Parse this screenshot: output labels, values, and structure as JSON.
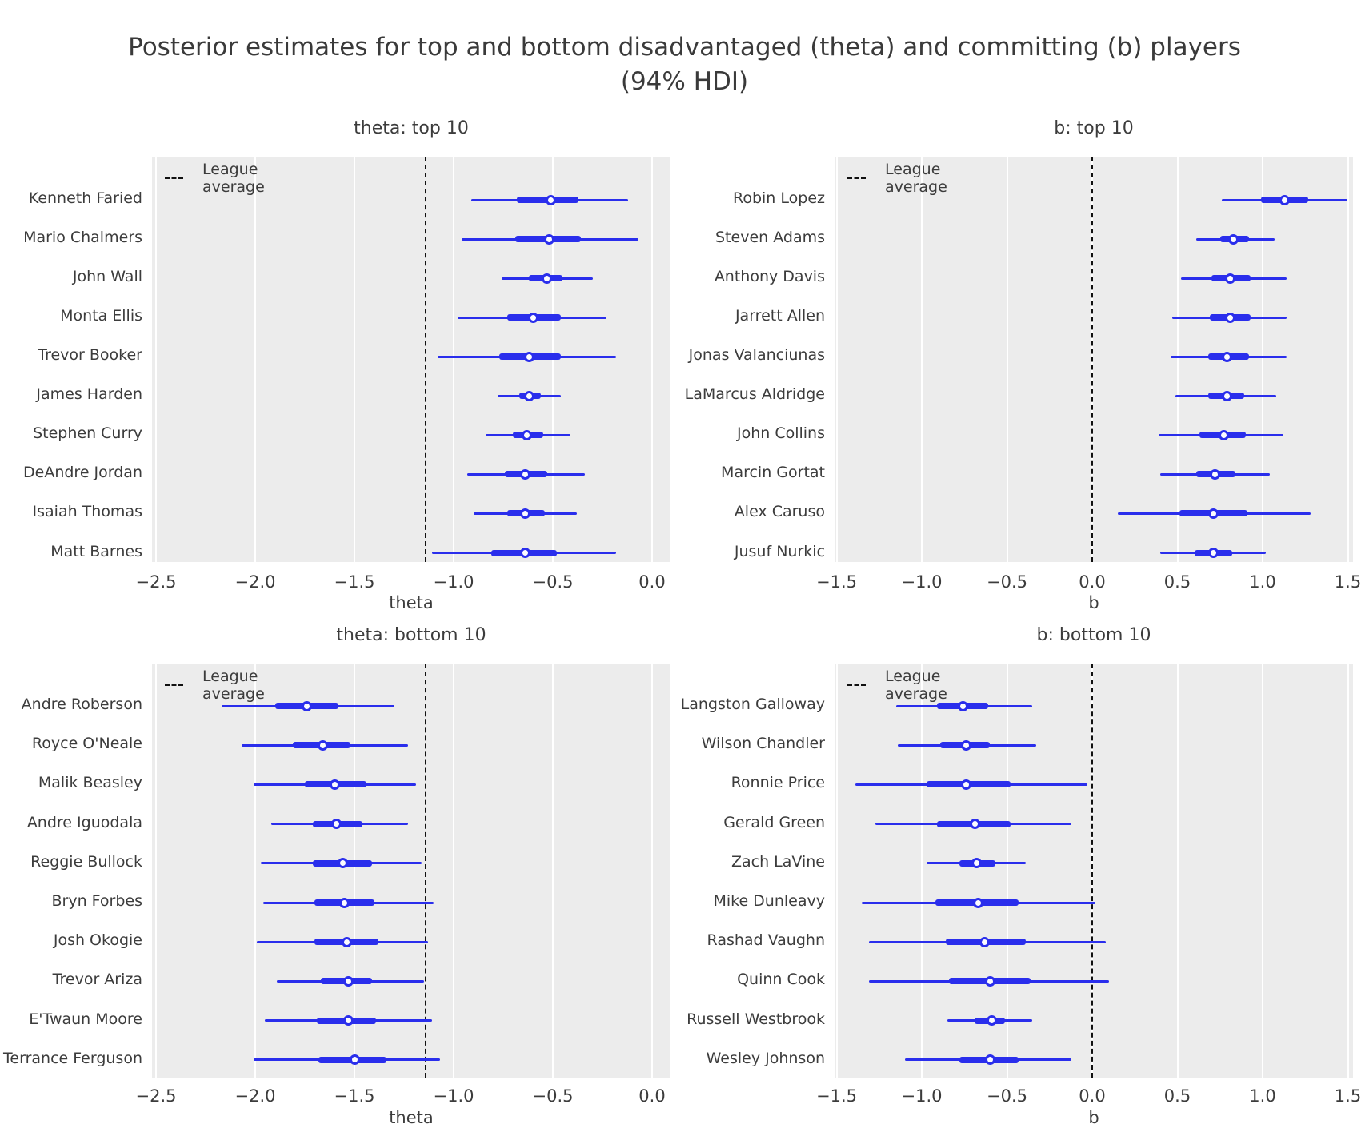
{
  "figure": {
    "suptitle_line1": "Posterior estimates for top and bottom disadvantaged (theta) and committing (b) players",
    "suptitle_line2": "(94% HDI)"
  },
  "style": {
    "line_color": "#2a2eec",
    "panel_bg": "#ececec",
    "grid_color": "#ffffff",
    "dashed_line_color": "#111111",
    "text_color": "#3c3c3c",
    "background": "#ffffff"
  },
  "legend_label": "League average",
  "chart_data": [
    {
      "type": "forest",
      "title": "theta: top 10",
      "xlabel": "theta",
      "xticks": [
        -2.5,
        -2.0,
        -1.5,
        -1.0,
        -0.5,
        0.0
      ],
      "xlim": [
        -2.52,
        0.09
      ],
      "league_average": -1.14,
      "interval_note": "thin line = 94% HDI, thick line = interquartile range, dot = point estimate",
      "players": [
        {
          "name": "Kenneth Faried",
          "hdi_low": -0.91,
          "q25": -0.68,
          "point": -0.51,
          "q75": -0.37,
          "hdi_high": -0.12
        },
        {
          "name": "Mario Chalmers",
          "hdi_low": -0.96,
          "q25": -0.69,
          "point": -0.52,
          "q75": -0.36,
          "hdi_high": -0.07
        },
        {
          "name": "John Wall",
          "hdi_low": -0.76,
          "q25": -0.62,
          "point": -0.53,
          "q75": -0.45,
          "hdi_high": -0.3
        },
        {
          "name": "Monta Ellis",
          "hdi_low": -0.98,
          "q25": -0.73,
          "point": -0.6,
          "q75": -0.46,
          "hdi_high": -0.23
        },
        {
          "name": "Trevor Booker",
          "hdi_low": -1.08,
          "q25": -0.77,
          "point": -0.62,
          "q75": -0.46,
          "hdi_high": -0.18
        },
        {
          "name": "James Harden",
          "hdi_low": -0.78,
          "q25": -0.67,
          "point": -0.62,
          "q75": -0.56,
          "hdi_high": -0.46
        },
        {
          "name": "Stephen Curry",
          "hdi_low": -0.84,
          "q25": -0.7,
          "point": -0.63,
          "q75": -0.55,
          "hdi_high": -0.41
        },
        {
          "name": "DeAndre Jordan",
          "hdi_low": -0.93,
          "q25": -0.74,
          "point": -0.64,
          "q75": -0.53,
          "hdi_high": -0.34
        },
        {
          "name": "Isaiah Thomas",
          "hdi_low": -0.9,
          "q25": -0.73,
          "point": -0.64,
          "q75": -0.54,
          "hdi_high": -0.38
        },
        {
          "name": "Matt Barnes",
          "hdi_low": -1.11,
          "q25": -0.81,
          "point": -0.64,
          "q75": -0.48,
          "hdi_high": -0.18
        }
      ]
    },
    {
      "type": "forest",
      "title": "b: top 10",
      "xlabel": "b",
      "xticks": [
        -1.5,
        -1.0,
        -0.5,
        0.0,
        0.5,
        1.0,
        1.5
      ],
      "xlim": [
        -1.51,
        1.53
      ],
      "league_average": 0.0,
      "interval_note": "thin line = 94% HDI, thick line = interquartile range, dot = point estimate",
      "players": [
        {
          "name": "Robin Lopez",
          "hdi_low": 0.76,
          "q25": 0.99,
          "point": 1.13,
          "q75": 1.27,
          "hdi_high": 1.5
        },
        {
          "name": "Steven Adams",
          "hdi_low": 0.61,
          "q25": 0.75,
          "point": 0.83,
          "q75": 0.92,
          "hdi_high": 1.07
        },
        {
          "name": "Anthony Davis",
          "hdi_low": 0.52,
          "q25": 0.7,
          "point": 0.81,
          "q75": 0.93,
          "hdi_high": 1.14
        },
        {
          "name": "Jarrett Allen",
          "hdi_low": 0.47,
          "q25": 0.69,
          "point": 0.81,
          "q75": 0.93,
          "hdi_high": 1.14
        },
        {
          "name": "Jonas Valanciunas",
          "hdi_low": 0.46,
          "q25": 0.68,
          "point": 0.79,
          "q75": 0.92,
          "hdi_high": 1.14
        },
        {
          "name": "LaMarcus Aldridge",
          "hdi_low": 0.49,
          "q25": 0.68,
          "point": 0.79,
          "q75": 0.89,
          "hdi_high": 1.08
        },
        {
          "name": "John Collins",
          "hdi_low": 0.39,
          "q25": 0.63,
          "point": 0.77,
          "q75": 0.9,
          "hdi_high": 1.12
        },
        {
          "name": "Marcin Gortat",
          "hdi_low": 0.4,
          "q25": 0.61,
          "point": 0.72,
          "q75": 0.84,
          "hdi_high": 1.04
        },
        {
          "name": "Alex Caruso",
          "hdi_low": 0.15,
          "q25": 0.51,
          "point": 0.71,
          "q75": 0.91,
          "hdi_high": 1.28
        },
        {
          "name": "Jusuf Nurkic",
          "hdi_low": 0.4,
          "q25": 0.6,
          "point": 0.71,
          "q75": 0.82,
          "hdi_high": 1.02
        }
      ]
    },
    {
      "type": "forest",
      "title": "theta: bottom 10",
      "xlabel": "theta",
      "xticks": [
        -2.5,
        -2.0,
        -1.5,
        -1.0,
        -0.5,
        0.0
      ],
      "xlim": [
        -2.52,
        0.09
      ],
      "league_average": -1.14,
      "interval_note": "thin line = 94% HDI, thick line = interquartile range, dot = point estimate",
      "players": [
        {
          "name": "Andre Roberson",
          "hdi_low": -2.17,
          "q25": -1.9,
          "point": -1.74,
          "q75": -1.58,
          "hdi_high": -1.3
        },
        {
          "name": "Royce O'Neale",
          "hdi_low": -2.07,
          "q25": -1.81,
          "point": -1.66,
          "q75": -1.52,
          "hdi_high": -1.23
        },
        {
          "name": "Malik Beasley",
          "hdi_low": -2.01,
          "q25": -1.75,
          "point": -1.6,
          "q75": -1.44,
          "hdi_high": -1.19
        },
        {
          "name": "Andre Iguodala",
          "hdi_low": -1.92,
          "q25": -1.71,
          "point": -1.59,
          "q75": -1.46,
          "hdi_high": -1.23
        },
        {
          "name": "Reggie Bullock",
          "hdi_low": -1.97,
          "q25": -1.71,
          "point": -1.56,
          "q75": -1.41,
          "hdi_high": -1.16
        },
        {
          "name": "Bryn Forbes",
          "hdi_low": -1.96,
          "q25": -1.7,
          "point": -1.55,
          "q75": -1.4,
          "hdi_high": -1.1
        },
        {
          "name": "Josh Okogie",
          "hdi_low": -1.99,
          "q25": -1.7,
          "point": -1.54,
          "q75": -1.38,
          "hdi_high": -1.13
        },
        {
          "name": "Trevor Ariza",
          "hdi_low": -1.89,
          "q25": -1.67,
          "point": -1.53,
          "q75": -1.41,
          "hdi_high": -1.15
        },
        {
          "name": "E'Twaun Moore",
          "hdi_low": -1.95,
          "q25": -1.69,
          "point": -1.53,
          "q75": -1.39,
          "hdi_high": -1.11
        },
        {
          "name": "Terrance Ferguson",
          "hdi_low": -2.01,
          "q25": -1.68,
          "point": -1.5,
          "q75": -1.34,
          "hdi_high": -1.07
        }
      ]
    },
    {
      "type": "forest",
      "title": "b: bottom 10",
      "xlabel": "b",
      "xticks": [
        -1.5,
        -1.0,
        -0.5,
        0.0,
        0.5,
        1.0,
        1.5
      ],
      "xlim": [
        -1.51,
        1.53
      ],
      "league_average": 0.0,
      "interval_note": "thin line = 94% HDI, thick line = interquartile range, dot = point estimate",
      "players": [
        {
          "name": "Langston Galloway",
          "hdi_low": -1.15,
          "q25": -0.91,
          "point": -0.76,
          "q75": -0.61,
          "hdi_high": -0.35
        },
        {
          "name": "Wilson Chandler",
          "hdi_low": -1.14,
          "q25": -0.89,
          "point": -0.74,
          "q75": -0.6,
          "hdi_high": -0.33
        },
        {
          "name": "Ronnie Price",
          "hdi_low": -1.39,
          "q25": -0.97,
          "point": -0.74,
          "q75": -0.48,
          "hdi_high": -0.03
        },
        {
          "name": "Gerald Green",
          "hdi_low": -1.27,
          "q25": -0.91,
          "point": -0.69,
          "q75": -0.48,
          "hdi_high": -0.12
        },
        {
          "name": "Zach LaVine",
          "hdi_low": -0.97,
          "q25": -0.78,
          "point": -0.68,
          "q75": -0.57,
          "hdi_high": -0.39
        },
        {
          "name": "Mike Dunleavy",
          "hdi_low": -1.35,
          "q25": -0.92,
          "point": -0.67,
          "q75": -0.43,
          "hdi_high": 0.02
        },
        {
          "name": "Rashad Vaughn",
          "hdi_low": -1.31,
          "q25": -0.86,
          "point": -0.63,
          "q75": -0.39,
          "hdi_high": 0.08
        },
        {
          "name": "Quinn Cook",
          "hdi_low": -1.31,
          "q25": -0.84,
          "point": -0.6,
          "q75": -0.36,
          "hdi_high": 0.1
        },
        {
          "name": "Russell Westbrook",
          "hdi_low": -0.85,
          "q25": -0.69,
          "point": -0.59,
          "q75": -0.51,
          "hdi_high": -0.35
        },
        {
          "name": "Wesley Johnson",
          "hdi_low": -1.1,
          "q25": -0.78,
          "point": -0.6,
          "q75": -0.43,
          "hdi_high": -0.12
        }
      ]
    }
  ]
}
